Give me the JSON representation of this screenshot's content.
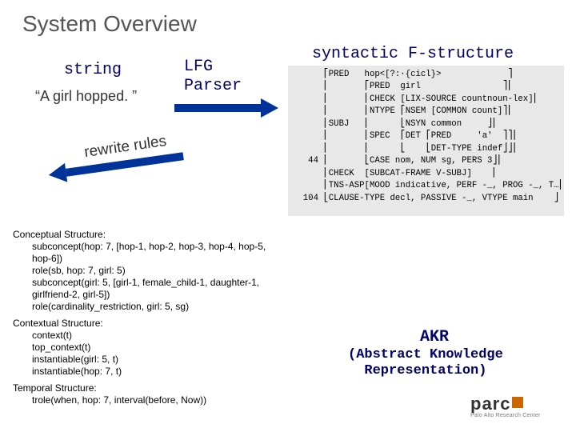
{
  "title": "System Overview",
  "top": {
    "string_label": "string",
    "example": "“A girl hopped. ”",
    "lfg_label": "LFG\nParser",
    "syntactic_label": "syntactic F-structure",
    "rewrite_label": "rewrite rules"
  },
  "fstruct": {
    "bg": "#e8e8e8",
    "font": "Courier New",
    "fontsize_pt": 8,
    "text_color": "#000000",
    "lines": [
      "      ⎡PRED   hop<[?:·{cicl}>             ⎤",
      "      ⎢       ⎡PRED  girl                ⎤⎢",
      "      ⎢       ⎢CHECK [LIX-SOURCE countnoun-lex]⎢",
      "      ⎢       ⎢NTYPE ⎡NSEM [COMMON count]⎤⎢",
      "      ⎢SUBJ   ⎢      ⎣NSYN common     ⎦⎢",
      "      ⎢       ⎢SPEC  ⎡DET ⎡PRED     'a'  ⎤⎤⎢",
      "      ⎢       ⎢      ⎣    ⎣DET-TYPE indef⎦⎦⎢",
      "   44 ⎢       ⎣CASE nom, NUM sg, PERS 3⎦⎢",
      "      ⎢CHECK  [SUBCAT-FRAME V-SUBJ]    ⎢",
      "      ⎢TNS-ASP[MOOD indicative, PERF -_, PROG -_, T…⎢",
      "  104 ⎣CLAUSE-TYPE decl, PASSIVE -_, VTYPE main    ⎦"
    ]
  },
  "akr": {
    "heading": "AKR",
    "subheading": "(Abstract Knowledge\nRepresentation)",
    "fontsize_pt": 9,
    "heading_color": "#000000",
    "body_color": "#000000",
    "sections": [
      {
        "head": "Conceptual Structure:",
        "items": [
          "subconcept(hop: 7, [hop-1, hop-2, hop-3, hop-4, hop-5, hop-6])",
          "role(sb, hop: 7, girl: 5)",
          "subconcept(girl: 5, [girl-1, female_child-1, daughter-1, girlfriend-2, girl-5])",
          "role(cardinality_restriction, girl: 5, sg)"
        ]
      },
      {
        "head": "Contextual Structure:",
        "items": [
          "context(t)",
          "top_context(t)",
          "instantiable(girl: 5, t)",
          "instantiable(hop: 7, t)"
        ]
      },
      {
        "head": "Temporal Structure:",
        "items": [
          "trole(when, hop: 7, interval(before, Now))"
        ]
      }
    ]
  },
  "colors": {
    "title": "#555555",
    "mono_blue": "#000066",
    "arrow": "#003399",
    "body_text": "#333333",
    "fstruct_bg": "#e8e8e8",
    "parc_square": "#cc6600"
  },
  "logo": {
    "name": "parc",
    "tagline": "Palo Alto Research Center"
  }
}
